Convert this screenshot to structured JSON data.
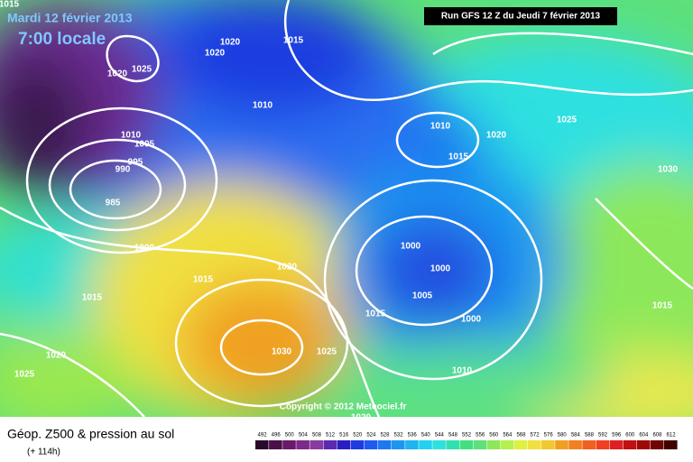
{
  "header": {
    "date": "Mardi 12 février 2013",
    "time": "7:00 locale",
    "run": "Run GFS 12 Z du Jeudi 7 février 2013"
  },
  "isobar_labels": [
    1015,
    1020,
    1015,
    1020,
    1025,
    1020,
    1010,
    1010,
    1005,
    995,
    990,
    985,
    1000,
    1020,
    1015,
    1015,
    1020,
    1025,
    1030,
    1025,
    1015,
    1010,
    1020,
    1025,
    1015,
    1030,
    1000,
    1000,
    1005,
    1000,
    1010,
    1015,
    1020,
    1020
  ],
  "copyright": "Copyright © 2012 Meteociel.fr",
  "footer": {
    "title": "Géop. Z500 & pression au sol",
    "subtitle": "(+ 114h)"
  },
  "scale": [
    492,
    496,
    500,
    504,
    508,
    512,
    516,
    520,
    524,
    528,
    532,
    536,
    540,
    544,
    548,
    552,
    556,
    560,
    564,
    568,
    572,
    576,
    580,
    584,
    588,
    592,
    596,
    600,
    604,
    608,
    612
  ]
}
